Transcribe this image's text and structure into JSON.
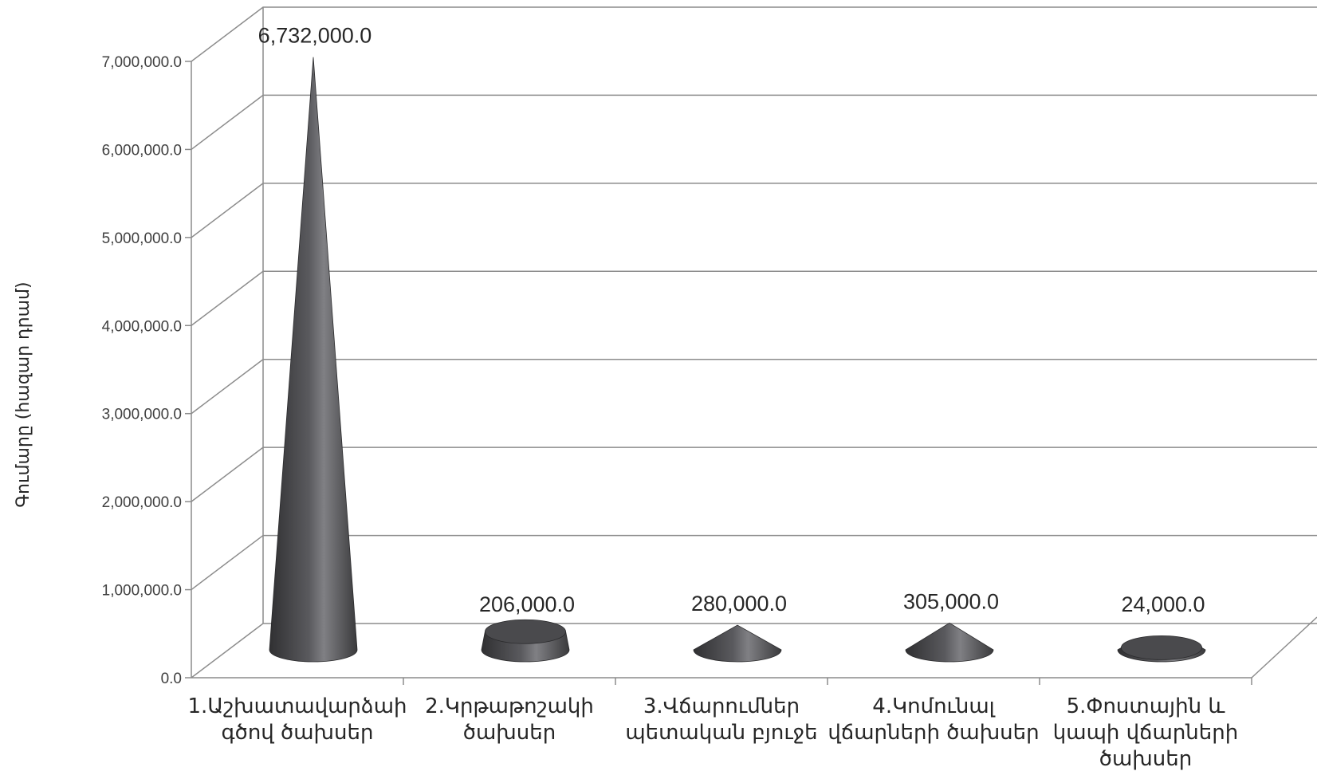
{
  "chart_data": {
    "type": "bar",
    "bar_shape": "3d-cone",
    "title": "",
    "xlabel": "",
    "ylabel": "Գումարը (հազար դրամ)",
    "categories": [
      [
        "1.Աշխատավարձաի",
        "գծով ծախսեր"
      ],
      [
        "2.Կրթաթոշակի",
        "ծախսեր"
      ],
      [
        "3.Վճարումներ",
        "պետական բյուջե"
      ],
      [
        "4.Կոմունալ",
        "վճարների ծախսեր"
      ],
      [
        "5.Փոստային և",
        "կապի վճարների",
        "ծախսեր"
      ]
    ],
    "values": [
      6732000,
      206000,
      280000,
      305000,
      24000
    ],
    "data_labels": [
      "6,732,000.0",
      "206,000.0",
      "280,000.0",
      "305,000.0",
      "24,000.0"
    ],
    "ylim": [
      0,
      7000000
    ],
    "yticks": [
      0,
      1000000,
      2000000,
      3000000,
      4000000,
      5000000,
      6000000,
      7000000
    ],
    "ytick_labels": [
      "0.0",
      "1,000,000.0",
      "2,000,000.0",
      "3,000,000.0",
      "4,000,000.0",
      "5,000,000.0",
      "6,000,000.0",
      "7,000,000.0"
    ],
    "grid": true,
    "legend": "none",
    "colors": {
      "bar_dark": "#3c3c3e",
      "bar_light": "#808084",
      "bar_top": "#4a4a4d",
      "grid": "#8c8c8c",
      "axis": "#8c8c8c",
      "text": "#262626"
    }
  }
}
